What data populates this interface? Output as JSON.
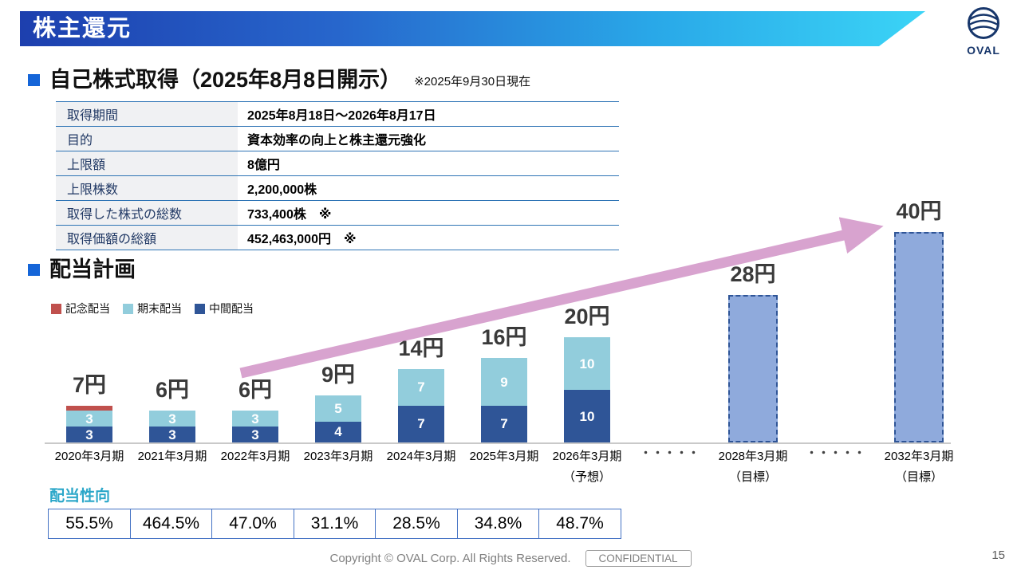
{
  "header": {
    "title": "株主還元",
    "logo_text": "OVAL"
  },
  "buyback": {
    "title": "自己株式取得（2025年8月8日開示）",
    "note": "※2025年9月30日現在",
    "rows": [
      {
        "label": "取得期間",
        "value": "2025年8月18日～2026年8月17日"
      },
      {
        "label": "目的",
        "value": "資本効率の向上と株主還元強化"
      },
      {
        "label": "上限額",
        "value": "8億円"
      },
      {
        "label": "上限株数",
        "value": "2,200,000株"
      },
      {
        "label": "取得した株式の総数",
        "value": "733,400株　※"
      },
      {
        "label": "取得価額の総額",
        "value": "452,463,000円　※"
      }
    ]
  },
  "dividend": {
    "title": "配当計画",
    "legend": [
      {
        "label": "記念配当",
        "color": "#c0504d"
      },
      {
        "label": "期末配当",
        "color": "#92cddc"
      },
      {
        "label": "中間配当",
        "color": "#2f5597"
      }
    ],
    "payout_label": "配当性向",
    "payout_ratios": [
      "55.5%",
      "464.5%",
      "47.0%",
      "31.1%",
      "28.5%",
      "34.8%",
      "48.7%"
    ]
  },
  "chart_data": {
    "type": "bar",
    "stacked": true,
    "title": "配当計画",
    "unit": "円",
    "ylim": [
      0,
      40
    ],
    "grid": false,
    "legend_position": "top-left",
    "series_order_bottom_to_top": [
      "中間配当",
      "期末配当",
      "記念配当"
    ],
    "colors": {
      "中間配当": "#2f5597",
      "期末配当": "#92cddc",
      "記念配当": "#c0504d",
      "target_fill": "#8faadc",
      "target_border": "#2f5597",
      "arrow": "#d8a3cf"
    },
    "bars": [
      {
        "category": "2020年3月期",
        "sub": "",
        "total": 7,
        "total_label": "7円",
        "segments": [
          {
            "name": "中間配当",
            "value": 3,
            "show": "3"
          },
          {
            "name": "期末配当",
            "value": 3,
            "show": "3"
          },
          {
            "name": "記念配当",
            "value": 1,
            "show": ""
          }
        ]
      },
      {
        "category": "2021年3月期",
        "sub": "",
        "total": 6,
        "total_label": "6円",
        "segments": [
          {
            "name": "中間配当",
            "value": 3,
            "show": "3"
          },
          {
            "name": "期末配当",
            "value": 3,
            "show": "3"
          }
        ]
      },
      {
        "category": "2022年3月期",
        "sub": "",
        "total": 6,
        "total_label": "6円",
        "segments": [
          {
            "name": "中間配当",
            "value": 3,
            "show": "3"
          },
          {
            "name": "期末配当",
            "value": 3,
            "show": "3"
          }
        ]
      },
      {
        "category": "2023年3月期",
        "sub": "",
        "total": 9,
        "total_label": "9円",
        "segments": [
          {
            "name": "中間配当",
            "value": 4,
            "show": "4"
          },
          {
            "name": "期末配当",
            "value": 5,
            "show": "5"
          }
        ]
      },
      {
        "category": "2024年3月期",
        "sub": "",
        "total": 14,
        "total_label": "14円",
        "segments": [
          {
            "name": "中間配当",
            "value": 7,
            "show": "7"
          },
          {
            "name": "期末配当",
            "value": 7,
            "show": "7"
          }
        ]
      },
      {
        "category": "2025年3月期",
        "sub": "",
        "total": 16,
        "total_label": "16円",
        "segments": [
          {
            "name": "中間配当",
            "value": 7,
            "show": "7"
          },
          {
            "name": "期末配当",
            "value": 9,
            "show": "9"
          }
        ]
      },
      {
        "category": "2026年3月期",
        "sub": "（予想）",
        "total": 20,
        "total_label": "20円",
        "segments": [
          {
            "name": "中間配当",
            "value": 10,
            "show": "10"
          },
          {
            "name": "期末配当",
            "value": 10,
            "show": "10"
          }
        ]
      },
      {
        "category": "・・・・・",
        "type": "dots"
      },
      {
        "category": "2028年3月期",
        "sub": "（目標）",
        "total": 28,
        "total_label": "28円",
        "type": "target"
      },
      {
        "category": "・・・・・",
        "type": "dots"
      },
      {
        "category": "2032年3月期",
        "sub": "（目標）",
        "total": 40,
        "total_label": "40円",
        "type": "target"
      }
    ]
  },
  "footer": {
    "copyright": "Copyright © OVAL Corp. All Rights Reserved.",
    "confidential": "CONFIDENTIAL",
    "page": "15"
  }
}
